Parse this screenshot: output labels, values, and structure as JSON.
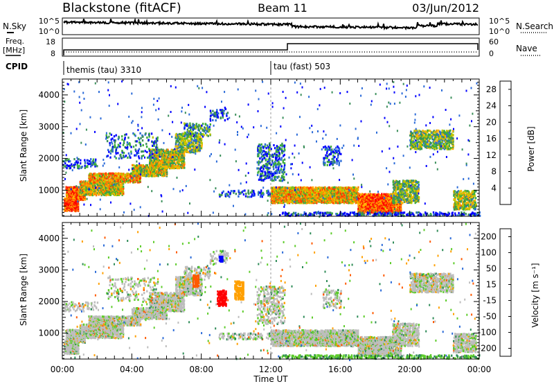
{
  "header": {
    "station": "Blackstone (fitACF)",
    "beam": "Beam 11",
    "date": "03/Jun/2012"
  },
  "status_panel": {
    "nsky_label": "N.Sky",
    "nsky_tick_top": "10^5",
    "nsky_tick_bottom": "10^0",
    "nsearch_label": "N.Search",
    "nsearch_tick_top": "10^5",
    "nsearch_tick_bottom": "10^0",
    "freq_label": "Freq.",
    "freq_unit": "[MHz]",
    "freq_tick_top": "18",
    "freq_tick_bottom": "8",
    "nave_label": "Nave",
    "nave_tick_top": "60",
    "nave_tick_bottom": "0",
    "cpid_label": "CPID",
    "cpid_1": "themis (tau) 3310",
    "cpid_2": "tau (fast) 503"
  },
  "colors": {
    "power": [
      "#0000ff",
      "#2a6ad8",
      "#3a8f5a",
      "#3cae3c",
      "#b8c800",
      "#ffb000",
      "#ff7a00",
      "#ff3a00",
      "#ff0000"
    ],
    "velocity": [
      "#ff0000",
      "#ff5a00",
      "#ffa000",
      "#bdbdbd",
      "#5dcc2a",
      "#2e8b57",
      "#2a6ad8",
      "#0000ff"
    ]
  },
  "chart_data": [
    {
      "type": "heatmap",
      "name": "power",
      "ylabel": "Slant Range [km]",
      "xlabel": "Time UT",
      "x_ticks": [
        "00:00",
        "04:00",
        "08:00",
        "12:00",
        "16:00",
        "20:00",
        "00:00"
      ],
      "xlim": [
        0,
        24
      ],
      "y_ticks": [
        1000,
        2000,
        3000,
        4000
      ],
      "ylim": [
        180,
        4500
      ],
      "colorbar_label": "Power [dB]",
      "colorbar_ticks": [
        4,
        8,
        12,
        16,
        20,
        24,
        28
      ],
      "clim": [
        0,
        30
      ]
    },
    {
      "type": "heatmap",
      "name": "velocity",
      "ylabel": "Slant Range [km]",
      "xlabel": "Time UT",
      "x_ticks": [
        "00:00",
        "04:00",
        "08:00",
        "12:00",
        "16:00",
        "20:00",
        "00:00"
      ],
      "xlim": [
        0,
        24
      ],
      "y_ticks": [
        1000,
        2000,
        3000,
        4000
      ],
      "ylim": [
        180,
        4500
      ],
      "colorbar_label": "Velocity [m s⁻¹]",
      "colorbar_ticks": [
        200,
        100,
        50,
        15,
        -15,
        -50,
        -100,
        -200
      ]
    }
  ]
}
